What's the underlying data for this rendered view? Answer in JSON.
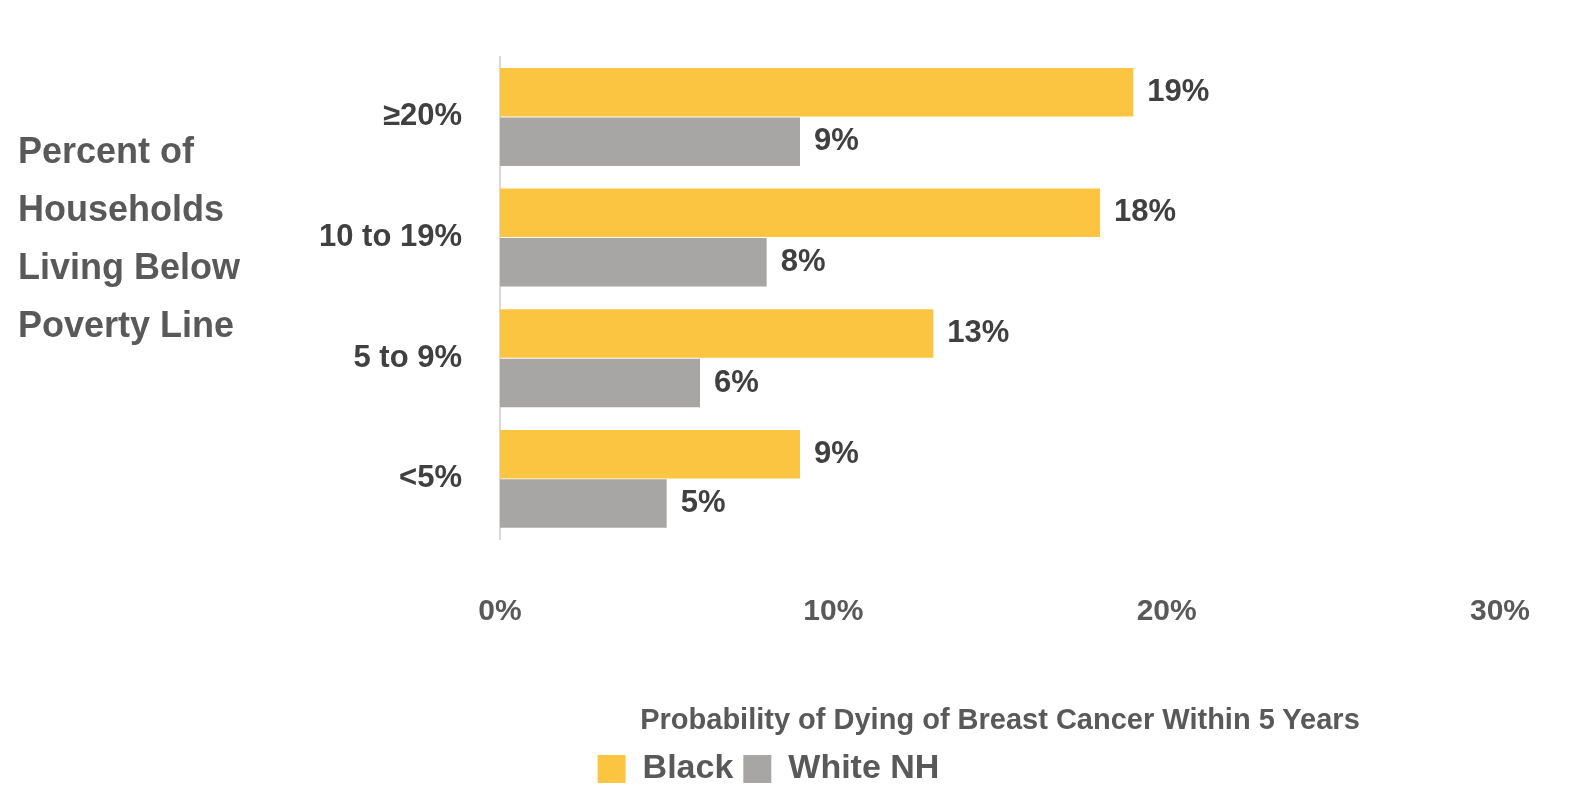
{
  "chart_data": {
    "type": "bar",
    "orientation": "horizontal",
    "xlabel": "Probability of Dying of Breast Cancer Within 5 Years",
    "ylabel": "Percent of Households Living Below Poverty Line",
    "categories": [
      "≥20%",
      "10 to 19%",
      "5 to 9%",
      "<5%"
    ],
    "series": [
      {
        "name": "Black",
        "color": "#fcc541",
        "values": [
          19,
          18,
          13,
          9
        ],
        "value_labels": [
          "19%",
          "18%",
          "13%",
          "9%"
        ]
      },
      {
        "name": "White NH",
        "color": "#a8a5a5",
        "values": [
          9,
          8,
          6,
          5
        ],
        "value_labels": [
          "9%",
          "8%",
          "6%",
          "5%"
        ]
      }
    ],
    "xlim": [
      0,
      30
    ],
    "xticks": [
      {
        "value": 0,
        "label": "0%"
      },
      {
        "value": 10,
        "label": "10%"
      },
      {
        "value": 20,
        "label": "20%"
      },
      {
        "value": 30,
        "label": "30%"
      }
    ],
    "legend": "bottom"
  }
}
